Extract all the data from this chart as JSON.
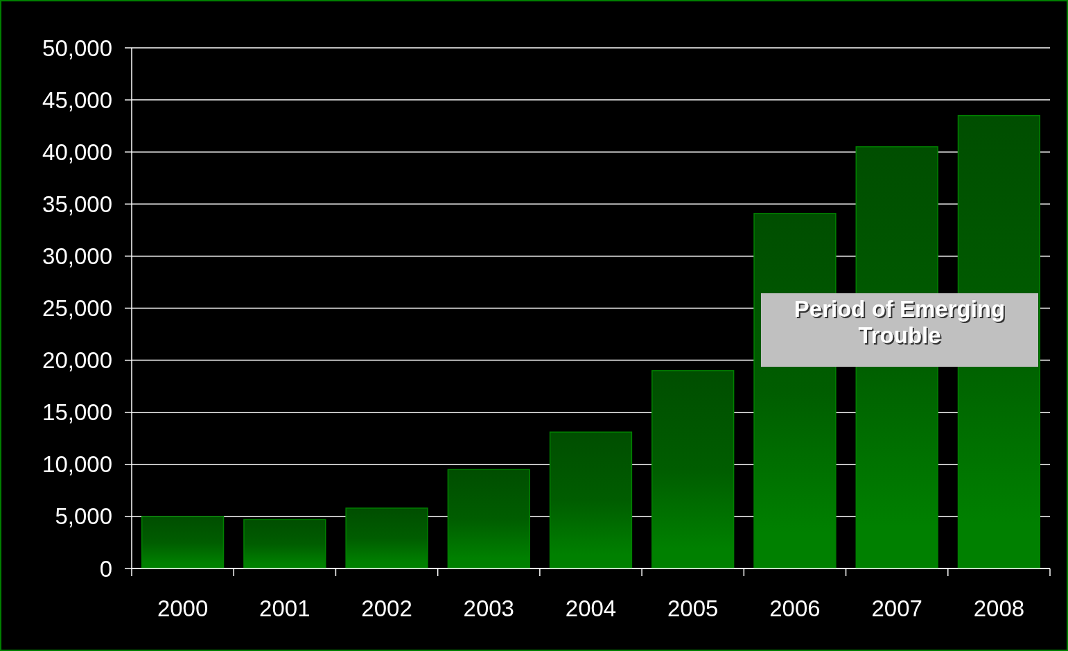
{
  "chart_data": {
    "type": "bar",
    "categories": [
      "2000",
      "2001",
      "2002",
      "2003",
      "2004",
      "2005",
      "2006",
      "2007",
      "2008"
    ],
    "values": [
      5000,
      4700,
      5800,
      9500,
      13100,
      19000,
      34100,
      40500,
      43500
    ],
    "color": "#008000",
    "ylim": [
      0,
      50000
    ],
    "yticks": [
      {
        "value": 0,
        "label": "0"
      },
      {
        "value": 5000,
        "label": "5,000"
      },
      {
        "value": 10000,
        "label": "10,000"
      },
      {
        "value": 15000,
        "label": "15,000"
      },
      {
        "value": 20000,
        "label": "20,000"
      },
      {
        "value": 25000,
        "label": "25,000"
      },
      {
        "value": 30000,
        "label": "30,000"
      },
      {
        "value": 35000,
        "label": "35,000"
      },
      {
        "value": 40000,
        "label": "40,000"
      },
      {
        "value": 45000,
        "label": "45,000"
      },
      {
        "value": 50000,
        "label": "50,000"
      }
    ],
    "grid": "y",
    "annotations": [
      "Period of Emerging Trouble"
    ]
  }
}
